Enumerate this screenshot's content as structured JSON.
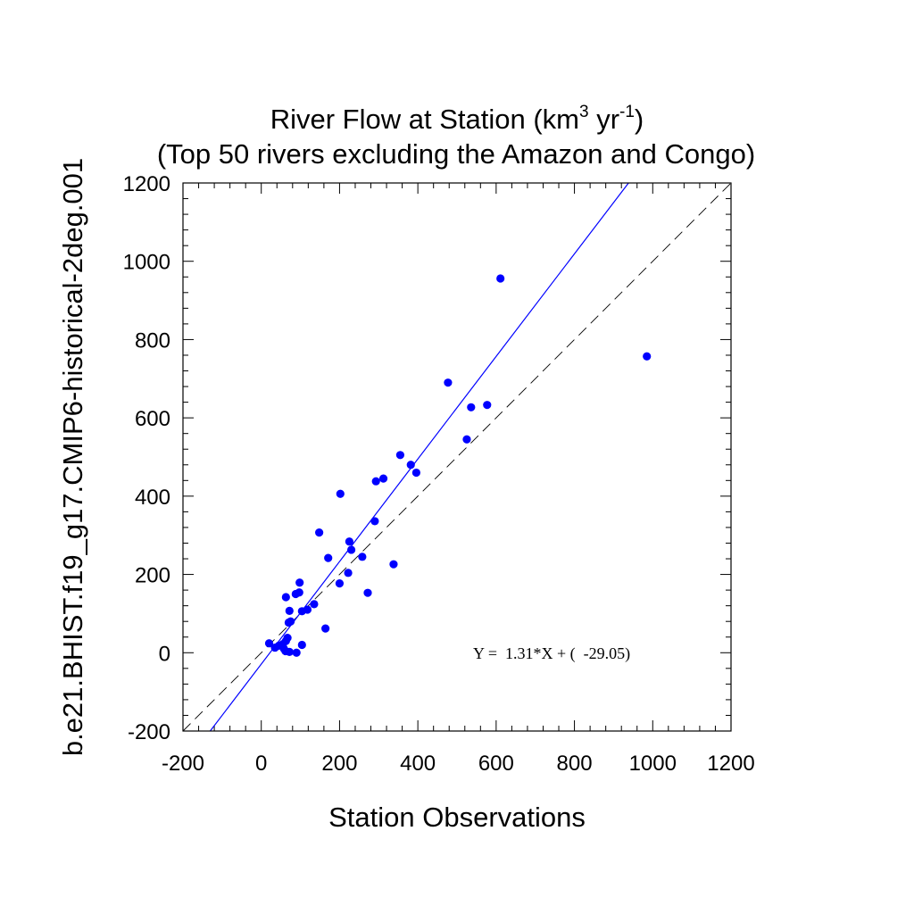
{
  "chart_data": {
    "type": "scatter",
    "title_line1_prefix": "River Flow at Station (km",
    "title_line1_sup1": "3",
    "title_line1_mid": " yr",
    "title_line1_sup2": "-1",
    "title_line1_suffix": ")",
    "title_line2": "(Top 50 rivers excluding the Amazon and Congo)",
    "xlabel": "Station Observations",
    "ylabel": "b.e21.BHIST.f19_g17.CMIP6-historical-2deg.001",
    "xlim": [
      -200,
      1200
    ],
    "ylim": [
      -200,
      1200
    ],
    "xticks": [
      "-200",
      "0",
      "200",
      "400",
      "600",
      "800",
      "1000",
      "1200"
    ],
    "yticks": [
      "-200",
      "0",
      "200",
      "400",
      "600",
      "800",
      "1000",
      "1200"
    ],
    "point_color": "#0000ff",
    "fit_color": "#0000ff",
    "reference_line": "1:1 dashed",
    "regression": {
      "slope": 1.31,
      "intercept": -29.05
    },
    "equation_text": "Y =  1.31*X + (  -29.05)",
    "points": [
      {
        "x": 611,
        "y": 956
      },
      {
        "x": 985,
        "y": 757
      },
      {
        "x": 477,
        "y": 690
      },
      {
        "x": 577,
        "y": 633
      },
      {
        "x": 536,
        "y": 627
      },
      {
        "x": 525,
        "y": 545
      },
      {
        "x": 355,
        "y": 505
      },
      {
        "x": 382,
        "y": 480
      },
      {
        "x": 396,
        "y": 460
      },
      {
        "x": 312,
        "y": 445
      },
      {
        "x": 293,
        "y": 438
      },
      {
        "x": 202,
        "y": 406
      },
      {
        "x": 290,
        "y": 336
      },
      {
        "x": 148,
        "y": 307
      },
      {
        "x": 225,
        "y": 284
      },
      {
        "x": 230,
        "y": 263
      },
      {
        "x": 258,
        "y": 245
      },
      {
        "x": 171,
        "y": 242
      },
      {
        "x": 338,
        "y": 226
      },
      {
        "x": 222,
        "y": 204
      },
      {
        "x": 98,
        "y": 179
      },
      {
        "x": 200,
        "y": 177
      },
      {
        "x": 272,
        "y": 153
      },
      {
        "x": 97,
        "y": 154
      },
      {
        "x": 88,
        "y": 150
      },
      {
        "x": 63,
        "y": 142
      },
      {
        "x": 135,
        "y": 124
      },
      {
        "x": 118,
        "y": 110
      },
      {
        "x": 104,
        "y": 106
      },
      {
        "x": 72,
        "y": 107
      },
      {
        "x": 75,
        "y": 80
      },
      {
        "x": 70,
        "y": 77
      },
      {
        "x": 164,
        "y": 62
      },
      {
        "x": 67,
        "y": 38
      },
      {
        "x": 63,
        "y": 30
      },
      {
        "x": 20,
        "y": 24
      },
      {
        "x": 55,
        "y": 22
      },
      {
        "x": 104,
        "y": 20
      },
      {
        "x": 45,
        "y": 18
      },
      {
        "x": 35,
        "y": 13
      },
      {
        "x": 58,
        "y": 10
      },
      {
        "x": 62,
        "y": 4
      },
      {
        "x": 72,
        "y": 2
      },
      {
        "x": 90,
        "y": 0
      }
    ]
  }
}
